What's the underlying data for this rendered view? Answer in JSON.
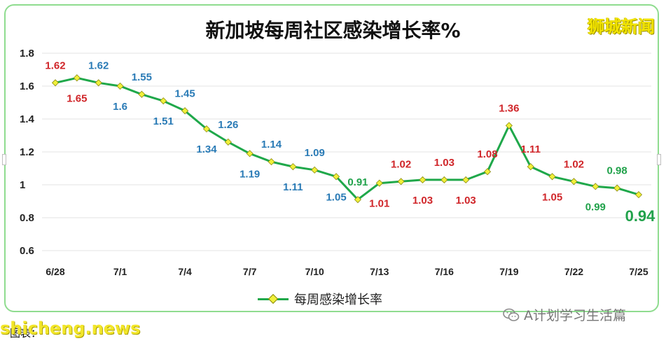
{
  "brand": "狮城新闻",
  "watermark": "shicheng.news",
  "source": "图表：",
  "wechat": {
    "icon": "wechat-icon",
    "text": "A计划学习生活篇"
  },
  "colors": {
    "line": "#1fa84a",
    "marker_fill": "#f0f03a",
    "label_red": "#d0262a",
    "label_blue": "#2a7bb6",
    "label_green": "#21a24b",
    "frame": "#8fdc8f"
  },
  "chart_data": {
    "type": "line",
    "title": "新加坡每周社区感染增长率%",
    "xlabel": "",
    "ylabel": "",
    "ylim": [
      0.6,
      1.8
    ],
    "yticks": [
      "1.8",
      "1.6",
      "1.4",
      "1.2",
      "1",
      "0.8",
      "0.6"
    ],
    "grid": "horizontal",
    "legend": "bottom-center",
    "x": [
      "6/28",
      "6/29",
      "6/30",
      "7/1",
      "7/2",
      "7/3",
      "7/4",
      "7/5",
      "7/6",
      "7/7",
      "7/8",
      "7/9",
      "7/10",
      "7/11",
      "7/12",
      "7/13",
      "7/14",
      "7/15",
      "7/16",
      "7/17",
      "7/18",
      "7/19",
      "7/20",
      "7/21",
      "7/22",
      "7/23",
      "7/24",
      "7/25"
    ],
    "xtick_labels": [
      "6/28",
      "7/1",
      "7/4",
      "7/7",
      "7/10",
      "7/13",
      "7/16",
      "7/19",
      "7/22",
      "7/25"
    ],
    "series": [
      {
        "name": "每周感染增长率",
        "values": [
          1.62,
          1.65,
          1.62,
          1.6,
          1.55,
          1.51,
          1.45,
          1.34,
          1.26,
          1.19,
          1.14,
          1.11,
          1.09,
          1.05,
          0.91,
          1.01,
          1.02,
          1.03,
          1.03,
          1.03,
          1.08,
          1.36,
          1.11,
          1.05,
          1.02,
          0.99,
          0.98,
          0.94
        ],
        "data_labels": [
          "1.62",
          "1.65",
          "1.62",
          "1.6",
          "1.55",
          "1.51",
          "1.45",
          "1.34",
          "1.26",
          "1.19",
          "1.14",
          "1.11",
          "1.09",
          "1.05",
          "0.91",
          "1.01",
          "1.02",
          "1.03",
          "1.03",
          "1.03",
          "1.08",
          "1.36",
          "1.11",
          "1.05",
          "1.02",
          "0.99",
          "0.98",
          "0.94"
        ],
        "label_colors": [
          "red",
          "red",
          "blue",
          "blue",
          "blue",
          "blue",
          "blue",
          "blue",
          "blue",
          "blue",
          "blue",
          "blue",
          "blue",
          "blue",
          "green",
          "red",
          "red",
          "red",
          "red",
          "red",
          "red",
          "red",
          "red",
          "red",
          "red",
          "green",
          "green",
          "green"
        ],
        "label_positions": [
          "above",
          "below",
          "above",
          "below",
          "above",
          "below",
          "above",
          "below",
          "above",
          "below",
          "above",
          "below",
          "above",
          "below",
          "above",
          "below",
          "above",
          "below",
          "above",
          "below",
          "above",
          "above",
          "above",
          "below",
          "above",
          "below",
          "above",
          "below"
        ]
      }
    ]
  }
}
